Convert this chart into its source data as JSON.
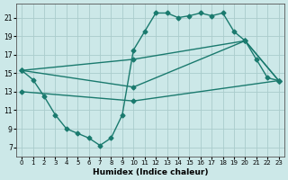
{
  "xlabel": "Humidex (Indice chaleur)",
  "background_color": "#cce8e8",
  "grid_color": "#aacccc",
  "line_color": "#1a7a6e",
  "xlim": [
    -0.5,
    23.5
  ],
  "ylim": [
    6.0,
    22.5
  ],
  "xticks": [
    0,
    1,
    2,
    3,
    4,
    5,
    6,
    7,
    8,
    9,
    10,
    11,
    12,
    13,
    14,
    15,
    16,
    17,
    18,
    19,
    20,
    21,
    22,
    23
  ],
  "yticks": [
    7,
    9,
    11,
    13,
    15,
    17,
    19,
    21
  ],
  "line1_x": [
    0,
    1,
    2,
    3,
    4,
    5,
    6,
    7,
    8,
    9,
    10,
    11,
    12,
    13,
    14,
    15,
    16,
    17,
    18,
    19,
    20,
    21,
    22,
    23
  ],
  "line1_y": [
    15.3,
    14.3,
    12.5,
    10.5,
    9.0,
    8.5,
    8.0,
    7.2,
    8.0,
    10.5,
    17.5,
    19.5,
    21.5,
    21.5,
    21.0,
    21.2,
    21.5,
    21.2,
    21.5,
    19.5,
    18.5,
    16.5,
    14.5,
    14.2
  ],
  "line2_x": [
    0,
    10,
    20,
    23
  ],
  "line2_y": [
    15.3,
    16.5,
    18.5,
    14.2
  ],
  "line3_x": [
    0,
    10,
    20,
    23
  ],
  "line3_y": [
    15.3,
    13.5,
    18.5,
    14.2
  ],
  "line4_x": [
    0,
    10,
    23
  ],
  "line4_y": [
    13.0,
    12.0,
    14.2
  ],
  "marker": "D",
  "markersize": 2.5,
  "linewidth": 1.0
}
